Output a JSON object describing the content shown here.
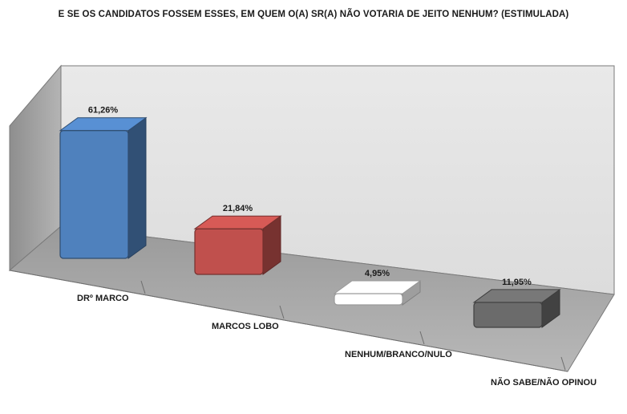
{
  "chart_data": {
    "type": "bar",
    "title": "E SE OS CANDIDATOS FOSSEM ESSES, EM QUEM O(A) SR(A) NÃO VOTARIA DE JEITO NENHUM? (ESTIMULADA)",
    "categories": [
      "DRº MARCO",
      "MARCOS LOBO",
      "NENHUM/BRANCO/NULO",
      "NÃO SABE/NÃO OPINOU"
    ],
    "values": [
      61.26,
      21.84,
      4.95,
      11.95
    ],
    "data_labels": [
      "61,26%",
      "21,84%",
      "4,95%",
      "11,95%"
    ],
    "colors": [
      "#4f81bd",
      "#c0504d",
      "#ffffff",
      "#6b6b6b"
    ],
    "ylim": [
      0,
      70
    ],
    "grid": false,
    "legend": "none",
    "style": "3d-perspective"
  }
}
